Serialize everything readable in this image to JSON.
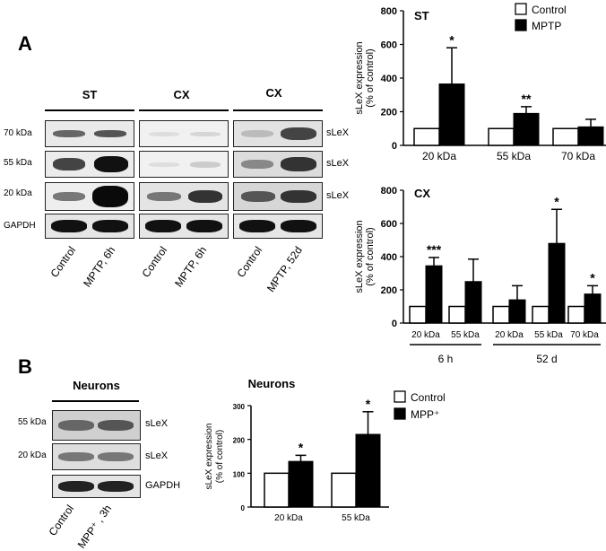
{
  "panelA": {
    "letter": "A",
    "blot_headers": [
      "ST",
      "CX",
      "CX"
    ],
    "row_labels": [
      "70 kDa",
      "55 kDa",
      "20 kDa",
      "GAPDH"
    ],
    "side_labels": [
      "sLeX",
      "sLeX",
      "sLeX"
    ],
    "lane_labels": [
      "Control",
      "MPTP, 6h",
      "Control",
      "MPTP, 6h",
      "Control",
      "MPTP, 52d"
    ]
  },
  "panelB": {
    "letter": "B",
    "blot_header": "Neurons",
    "row_labels": [
      "55 kDa",
      "20 kDa"
    ],
    "side_labels": [
      "sLeX",
      "sLeX",
      "GAPDH"
    ],
    "lane_labels": [
      "Control",
      "MPP⁺ , 3h"
    ]
  },
  "chart_data": [
    {
      "type": "bar",
      "title": "ST",
      "ylabel": "sLeX expression\n(% of control)",
      "ylim": [
        0,
        800
      ],
      "yticks": [
        0,
        200,
        400,
        600,
        800
      ],
      "categories": [
        "20 kDa",
        "55 kDa",
        "70 kDa"
      ],
      "legend": [
        "Control",
        "MPTP"
      ],
      "series": [
        {
          "name": "Control",
          "values": [
            100,
            100,
            100
          ],
          "color": "#ffffff"
        },
        {
          "name": "MPTP",
          "values": [
            365,
            190,
            110
          ],
          "errors": [
            215,
            40,
            45
          ],
          "color": "#000000"
        }
      ],
      "annotations": [
        "*",
        "**",
        ""
      ]
    },
    {
      "type": "bar",
      "title": "CX",
      "ylabel": "sLeX expression\n(% of control)",
      "ylim": [
        0,
        800
      ],
      "yticks": [
        0,
        200,
        400,
        600,
        800
      ],
      "categories": [
        "20 kDa",
        "55 kDa",
        "20 kDa",
        "55 kDa",
        "70 kDa"
      ],
      "groups": [
        {
          "label": "6 h",
          "count": 2
        },
        {
          "label": "52 d",
          "count": 3
        }
      ],
      "series": [
        {
          "name": "Control",
          "values": [
            100,
            100,
            100,
            100,
            100
          ],
          "color": "#ffffff"
        },
        {
          "name": "MPTP",
          "values": [
            345,
            250,
            140,
            480,
            175
          ],
          "errors": [
            50,
            135,
            85,
            205,
            50
          ],
          "color": "#000000"
        }
      ],
      "annotations": [
        "***",
        "",
        "",
        "*",
        "*"
      ]
    },
    {
      "type": "bar",
      "title": "Neurons",
      "ylabel": "sLeX expression\n(% of control)",
      "ylim": [
        0,
        300
      ],
      "yticks": [
        0,
        100,
        200,
        300
      ],
      "categories": [
        "20 kDa",
        "55 kDa"
      ],
      "legend": [
        "Control",
        "MPP⁺"
      ],
      "series": [
        {
          "name": "Control",
          "values": [
            100,
            100
          ],
          "color": "#ffffff"
        },
        {
          "name": "MPP⁺",
          "values": [
            135,
            215
          ],
          "errors": [
            18,
            67
          ],
          "color": "#000000"
        }
      ],
      "annotations": [
        "*",
        "*"
      ]
    }
  ]
}
